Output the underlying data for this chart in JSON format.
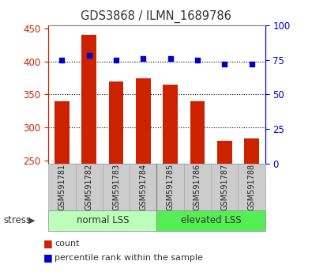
{
  "title": "GDS3868 / ILMN_1689786",
  "samples": [
    "GSM591781",
    "GSM591782",
    "GSM591783",
    "GSM591784",
    "GSM591785",
    "GSM591786",
    "GSM591787",
    "GSM591788"
  ],
  "counts": [
    340,
    440,
    370,
    375,
    365,
    340,
    280,
    284
  ],
  "percentile_ranks": [
    75,
    78,
    75,
    76,
    76,
    75,
    72,
    72
  ],
  "ylim_left": [
    245,
    455
  ],
  "ylim_right": [
    0,
    100
  ],
  "yticks_left": [
    250,
    300,
    350,
    400,
    450
  ],
  "yticks_right": [
    0,
    25,
    50,
    75,
    100
  ],
  "bar_color": "#cc2200",
  "dot_color": "#0000cc",
  "group1_label": "normal LSS",
  "group2_label": "elevated LSS",
  "group1_color": "#bbffbb",
  "group2_color": "#55ee55",
  "stress_label": "stress",
  "legend_count": "count",
  "legend_percentile": "percentile rank within the sample",
  "title_color": "#333333",
  "grid_color": "#000000",
  "left_axis_color": "#cc2200",
  "right_axis_color": "#0000cc",
  "sample_box_color": "#cccccc",
  "bar_width": 0.55
}
